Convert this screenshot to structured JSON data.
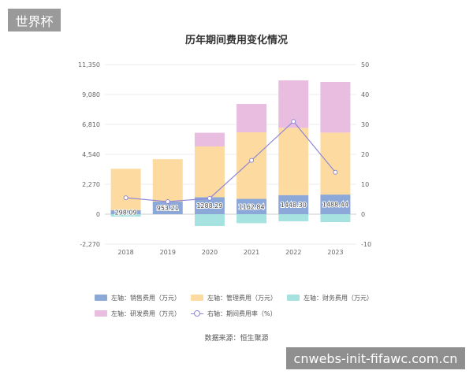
{
  "badge": {
    "text": "世界杯"
  },
  "watermark": {
    "text": "cnwebs-init-fifawc.com.cn"
  },
  "source": {
    "text": "数据来源：恒生聚源"
  },
  "chart_data": {
    "type": "bar",
    "title": "历年期间费用变化情况",
    "categories": [
      "2018",
      "2019",
      "2020",
      "2021",
      "2022",
      "2023"
    ],
    "left_axis": {
      "min": -2270,
      "max": 11350,
      "ticks": [
        "-2,270",
        "0",
        "2,270",
        "4,540",
        "6,810",
        "9,080",
        "11,350"
      ],
      "tick_values": [
        -2270,
        0,
        2270,
        4540,
        6810,
        9080,
        11350
      ]
    },
    "right_axis": {
      "min": -10,
      "max": 50,
      "ticks": [
        "-10",
        "0",
        "10",
        "20",
        "30",
        "40",
        "50"
      ],
      "tick_values": [
        -10,
        0,
        10,
        20,
        30,
        40,
        50
      ]
    },
    "stacked": true,
    "series": [
      {
        "name": "左轴：销售费用（万元）",
        "axis": "left",
        "color": "#8ca8d9",
        "values": [
          298.09,
          953.21,
          1288.29,
          1162.84,
          1448.3,
          1488.44
        ],
        "labels": [
          "298.09",
          "953.21",
          "1288.29",
          "1162.84",
          "1448.30",
          "1488.44"
        ]
      },
      {
        "name": "左轴：管理费用（万元）",
        "axis": "left",
        "color": "#fddba0",
        "values": [
          3150,
          3220,
          3850,
          5050,
          5100,
          4700
        ]
      },
      {
        "name": "左轴：财务费用（万元）",
        "axis": "left",
        "color": "#a6e3e0",
        "values": [
          -180,
          0,
          -900,
          -680,
          -540,
          -600
        ]
      },
      {
        "name": "左轴：研发费用（万元）",
        "axis": "left",
        "color": "#e9bddf",
        "values": [
          0,
          0,
          1040,
          2150,
          3600,
          3850
        ]
      },
      {
        "name": "右轴：期间费用率（%）",
        "axis": "right",
        "type": "line",
        "color": "#8e87d6",
        "values": [
          5.5,
          4.2,
          5.3,
          18,
          31,
          14
        ]
      }
    ],
    "grid": true,
    "legend_position": "bottom"
  }
}
